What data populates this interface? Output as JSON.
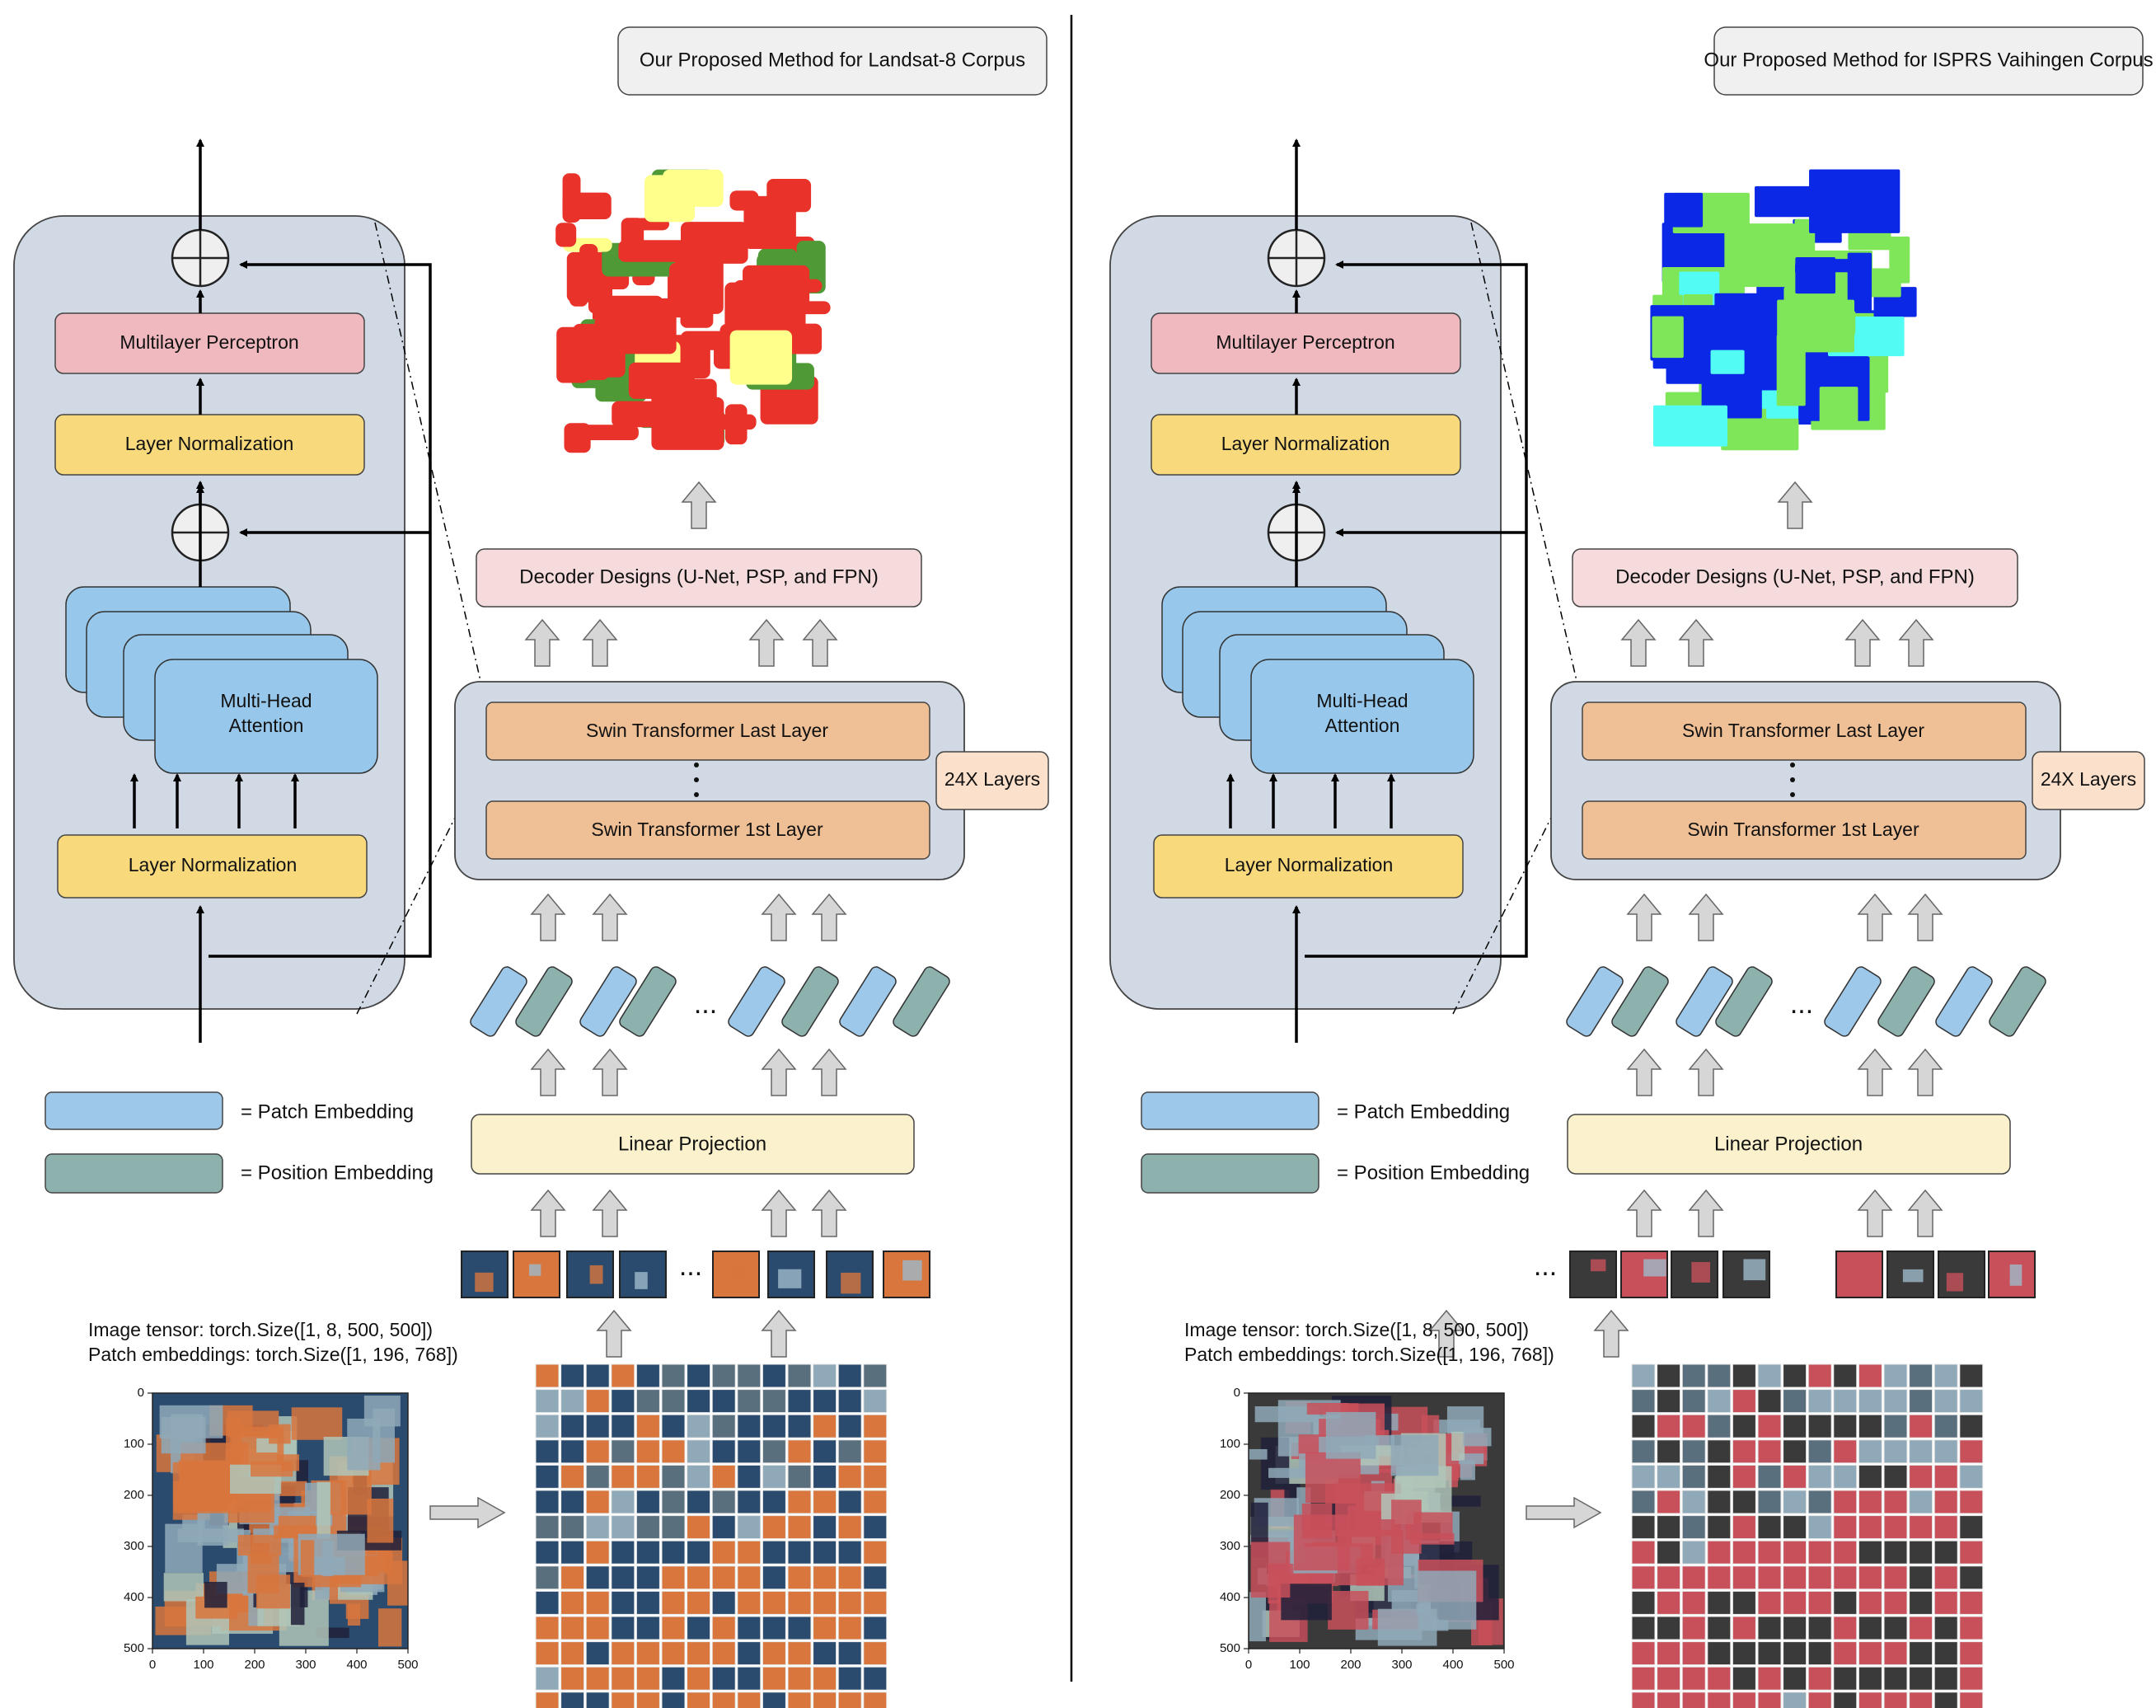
{
  "panels": [
    {
      "title": "Our Proposed Method for Landsat-8 Corpus",
      "encoder": {
        "mlp": "Multilayer Perceptron",
        "layer_norm_top": "Layer Normalization",
        "attention": [
          "Multi-Head",
          "Attention"
        ],
        "layer_norm_bottom": "Layer Normalization"
      },
      "decoder": "Decoder Designs (U-Net, PSP, and FPN)",
      "swin_last": "Swin Transformer Last Layer",
      "swin_first": "Swin Transformer 1st Layer",
      "layers_badge": "24X Layers",
      "linear_projection": "Linear Projection",
      "legend": {
        "patch": "= Patch Embedding",
        "position": "= Position Embedding"
      },
      "tensor_info": [
        "Image tensor: torch.Size([1, 8, 500, 500])",
        "Patch embeddings: torch.Size([1, 196, 768])"
      ],
      "ellipsis": "...",
      "axis_ticks_y": [
        "0",
        "100",
        "200",
        "300",
        "400",
        "500"
      ],
      "axis_ticks_x": [
        "0",
        "100",
        "200",
        "300",
        "400",
        "500"
      ],
      "colors": {
        "seg_main": "#e8322a",
        "seg_secondary": "#4f9a37",
        "seg_minor": "#ffff8c",
        "tile_dark": "#2a4b6e",
        "tile_orange": "#d8763d"
      }
    },
    {
      "title": "Our Proposed Method for ISPRS Vaihingen Corpus",
      "encoder": {
        "mlp": "Multilayer Perceptron",
        "layer_norm_top": "Layer Normalization",
        "attention": [
          "Multi-Head",
          "Attention"
        ],
        "layer_norm_bottom": "Layer Normalization"
      },
      "decoder": "Decoder Designs (U-Net, PSP, and FPN)",
      "swin_last": "Swin Transformer Last Layer",
      "swin_first": "Swin Transformer 1st Layer",
      "layers_badge": "24X Layers",
      "linear_projection": "Linear Projection",
      "legend": {
        "patch": "= Patch Embedding",
        "position": "= Position Embedding"
      },
      "tensor_info": [
        "Image tensor: torch.Size([1, 8, 500, 500])",
        "Patch embeddings: torch.Size([1, 196, 768])"
      ],
      "ellipsis": "...",
      "axis_ticks_y": [
        "0",
        "100",
        "200",
        "300",
        "400",
        "500"
      ],
      "axis_ticks_x": [
        "0",
        "100",
        "200",
        "300",
        "400",
        "500"
      ],
      "colors": {
        "seg_main": "#0a28e6",
        "seg_secondary": "#7ee658",
        "seg_minor": "#52fcf5",
        "tile_dark": "#3a3a3a",
        "tile_orange": "#c8505a"
      }
    }
  ],
  "palette": {
    "encoder_bg": "#d0d9e4",
    "mlp": "#efb9bf",
    "layer_norm": "#f8d97c",
    "attention": "#97c8eb",
    "swin_layer": "#efbf95",
    "decoder": "#f6dbdd",
    "linear_projection": "#fbf1cc",
    "patch_embedding": "#9dc8ea",
    "position_embedding": "#8db1ad",
    "title_box": "#f0f0f0",
    "block_arrow": "#d6d6d6"
  }
}
